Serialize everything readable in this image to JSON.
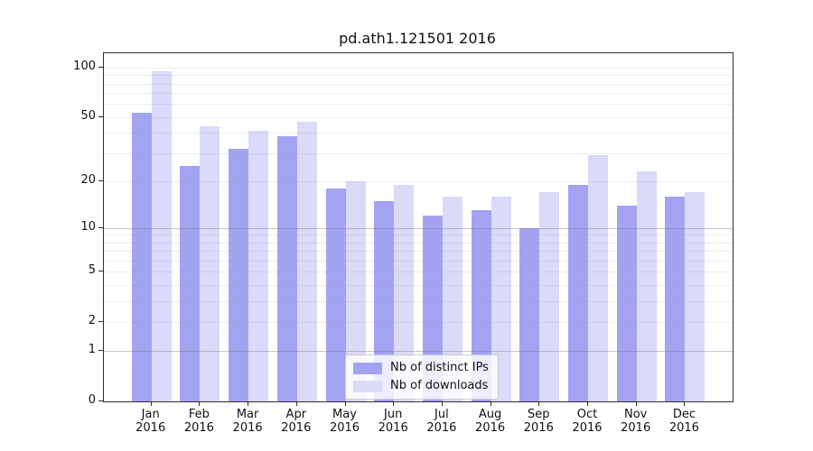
{
  "chart_data": {
    "type": "bar",
    "title": "pd.ath1.121501 2016",
    "categories": [
      "Jan",
      "Feb",
      "Mar",
      "Apr",
      "May",
      "Jun",
      "Jul",
      "Aug",
      "Sep",
      "Oct",
      "Nov",
      "Dec"
    ],
    "x_tick_second_line": "2016",
    "series": [
      {
        "name": "Nb of distinct IPs",
        "color": "#a3a3f2",
        "values": [
          53,
          25,
          32,
          38,
          18,
          15,
          12,
          13,
          10,
          19,
          14,
          16
        ]
      },
      {
        "name": "Nb of downloads",
        "color": "#dadaf9",
        "values": [
          95,
          44,
          41,
          47,
          20,
          19,
          16,
          16,
          17,
          29,
          23,
          17
        ]
      }
    ],
    "yscale": "log1p",
    "ylim": [
      0,
      122
    ],
    "y_tick_values": [
      0,
      1,
      2,
      5,
      10,
      20,
      50,
      100
    ],
    "y_tick_labels": [
      "0",
      "1",
      "2",
      "5",
      "10",
      "20",
      "50",
      "100"
    ],
    "y_minor_grid_values": [
      2,
      3,
      4,
      5,
      6,
      7,
      8,
      9,
      20,
      30,
      40,
      50,
      60,
      70,
      80,
      90,
      100
    ],
    "y_major_grid_values": [
      1,
      10
    ],
    "grid": true,
    "legend_position": "lower center",
    "background_color": "#ffffff"
  }
}
